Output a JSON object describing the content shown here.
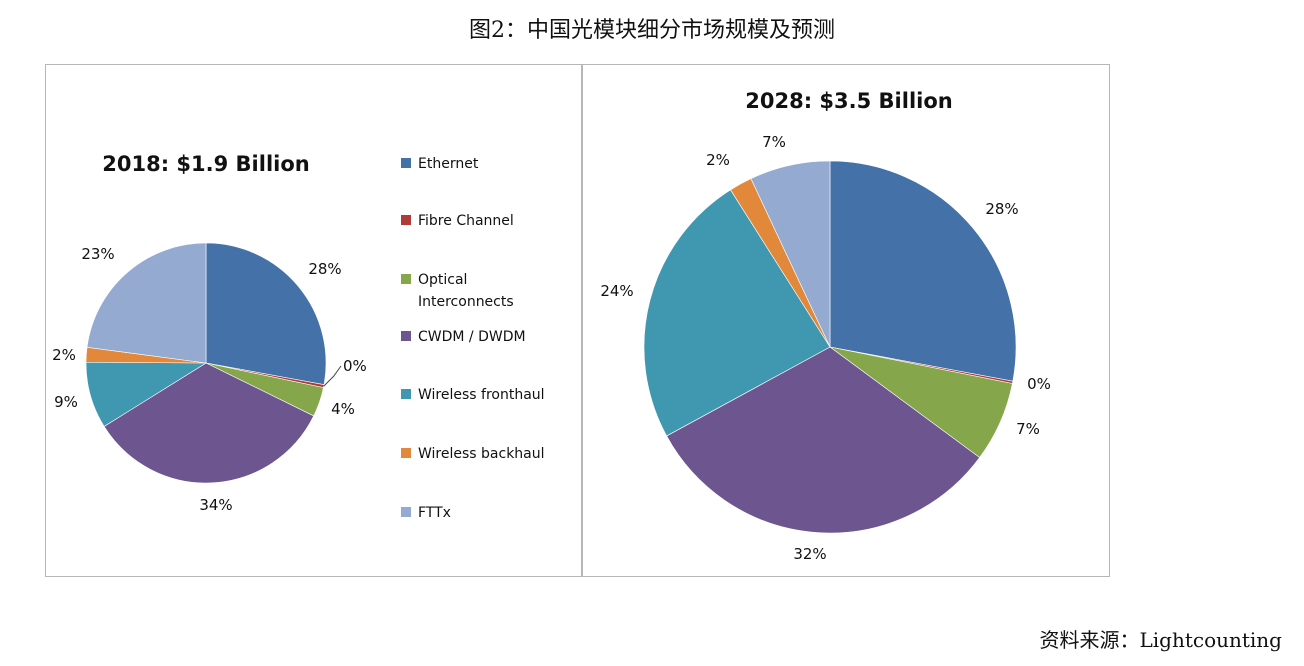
{
  "figure_title": "图2：中国光模块细分市场规模及预测",
  "source": "资料来源：Lightcounting",
  "chart_data": [
    {
      "type": "pie",
      "title": "2018: $1.9 Billion",
      "categories": [
        "Ethernet",
        "Fibre Channel",
        "Optical Interconnects",
        "CWDM / DWDM",
        "Wireless fronthaul",
        "Wireless backhaul",
        "FTTx"
      ],
      "values": [
        28,
        0.4,
        4,
        34,
        9,
        2,
        23
      ],
      "labels": [
        "28%",
        "0%",
        "4%",
        "34%",
        "9%",
        "2%",
        "23%"
      ],
      "colors": [
        "#4472a8",
        "#b03a38",
        "#85a64a",
        "#6d5590",
        "#3f98b0",
        "#e2883a",
        "#95aad1"
      ],
      "legend": {
        "placement": "right",
        "entries": [
          {
            "lines": [
              "Ethernet"
            ]
          },
          {
            "lines": [
              "Fibre Channel"
            ]
          },
          {
            "lines": [
              "Optical",
              "Interconnects"
            ]
          },
          {
            "lines": [
              "CWDM / DWDM"
            ]
          },
          {
            "lines": [
              "Wireless fronthaul"
            ]
          },
          {
            "lines": [
              "Wireless backhaul"
            ]
          },
          {
            "lines": [
              "FTTx"
            ]
          }
        ]
      }
    },
    {
      "type": "pie",
      "title": "2028: $3.5 Billion",
      "categories": [
        "Ethernet",
        "Fibre Channel",
        "Optical Interconnects",
        "CWDM / DWDM",
        "Wireless fronthaul",
        "Wireless backhaul",
        "FTTx"
      ],
      "values": [
        28,
        0.2,
        7,
        32,
        24,
        2,
        7
      ],
      "labels": [
        "28%",
        "0%",
        "7%",
        "32%",
        "24%",
        "2%",
        "7%"
      ],
      "colors": [
        "#4472a8",
        "#b03a38",
        "#85a64a",
        "#6d5590",
        "#3f98b0",
        "#e2883a",
        "#95aad1"
      ]
    }
  ]
}
